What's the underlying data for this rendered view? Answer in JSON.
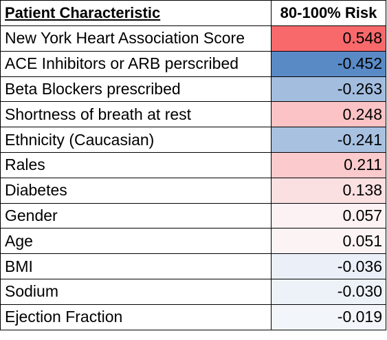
{
  "table": {
    "headers": {
      "characteristic": "Patient Characteristic",
      "risk": "80-100% Risk"
    },
    "rows": [
      {
        "characteristic": "New York Heart Association Score",
        "value": "0.548",
        "color": "#f8696b"
      },
      {
        "characteristic": "ACE Inhibitors or ARB perscribed",
        "value": "-0.452",
        "color": "#5a8ac6"
      },
      {
        "characteristic": "Beta Blockers prescribed",
        "value": "-0.263",
        "color": "#a3bddf"
      },
      {
        "characteristic": "Shortness of breath at rest",
        "value": "0.248",
        "color": "#fbc3c5"
      },
      {
        "characteristic": "Ethnicity (Caucasian)",
        "value": "-0.241",
        "color": "#a8c1e1"
      },
      {
        "characteristic": "Rales",
        "value": "0.211",
        "color": "#fbcacc"
      },
      {
        "characteristic": "Diabetes",
        "value": "0.138",
        "color": "#fbe0e2"
      },
      {
        "characteristic": "Gender",
        "value": "0.057",
        "color": "#fcf1f3"
      },
      {
        "characteristic": "Age",
        "value": "0.051",
        "color": "#fcf3f5"
      },
      {
        "characteristic": "BMI",
        "value": "-0.036",
        "color": "#ebf0f8"
      },
      {
        "characteristic": "Sodium",
        "value": "-0.030",
        "color": "#edf2f9"
      },
      {
        "characteristic": "Ejection Fraction",
        "value": "-0.019",
        "color": "#f2f5fa"
      }
    ]
  }
}
